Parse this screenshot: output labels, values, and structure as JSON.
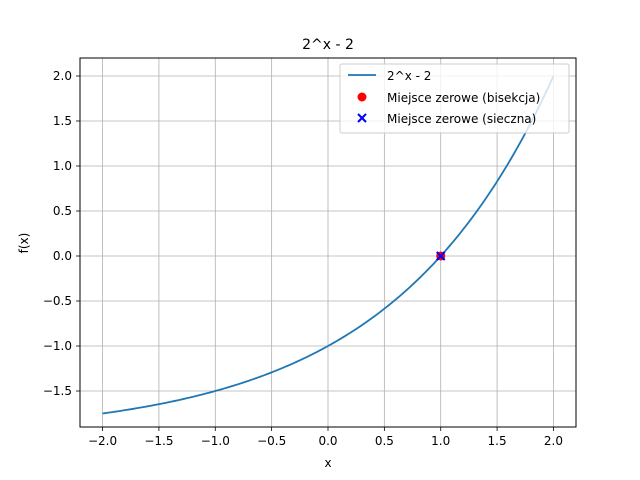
{
  "chart_data": {
    "type": "line",
    "title": "2^x - 2",
    "xlabel": "x",
    "ylabel": "f(x)",
    "xlim": [
      -2.2,
      2.2
    ],
    "ylim": [
      -1.9,
      2.2
    ],
    "grid": true,
    "x_ticks": [
      -2.0,
      -1.5,
      -1.0,
      -0.5,
      0.0,
      0.5,
      1.0,
      1.5,
      2.0
    ],
    "x_tick_labels": [
      "−2.0",
      "−1.5",
      "−1.0",
      "−0.5",
      "0.0",
      "0.5",
      "1.0",
      "1.5",
      "2.0"
    ],
    "y_ticks": [
      -1.5,
      -1.0,
      -0.5,
      0.0,
      0.5,
      1.0,
      1.5,
      2.0
    ],
    "y_tick_labels": [
      "−1.5",
      "−1.0",
      "−0.5",
      "0.0",
      "0.5",
      "1.0",
      "1.5",
      "2.0"
    ],
    "series": [
      {
        "name": "2^x - 2",
        "kind": "line",
        "function": "2^x - 2",
        "x_range": [
          -2,
          2
        ],
        "samples": 200,
        "color": "#1f77b4"
      },
      {
        "name": "Miejsce zerowe (bisekcja)",
        "kind": "scatter",
        "marker": "circle",
        "points": [
          [
            1.0,
            0.0
          ]
        ],
        "color": "#ff0000"
      },
      {
        "name": "Miejsce zerowe (sieczna)",
        "kind": "scatter",
        "marker": "x",
        "points": [
          [
            1.0,
            0.0
          ]
        ],
        "color": "#0000ff"
      }
    ],
    "legend_position": "top-right"
  }
}
